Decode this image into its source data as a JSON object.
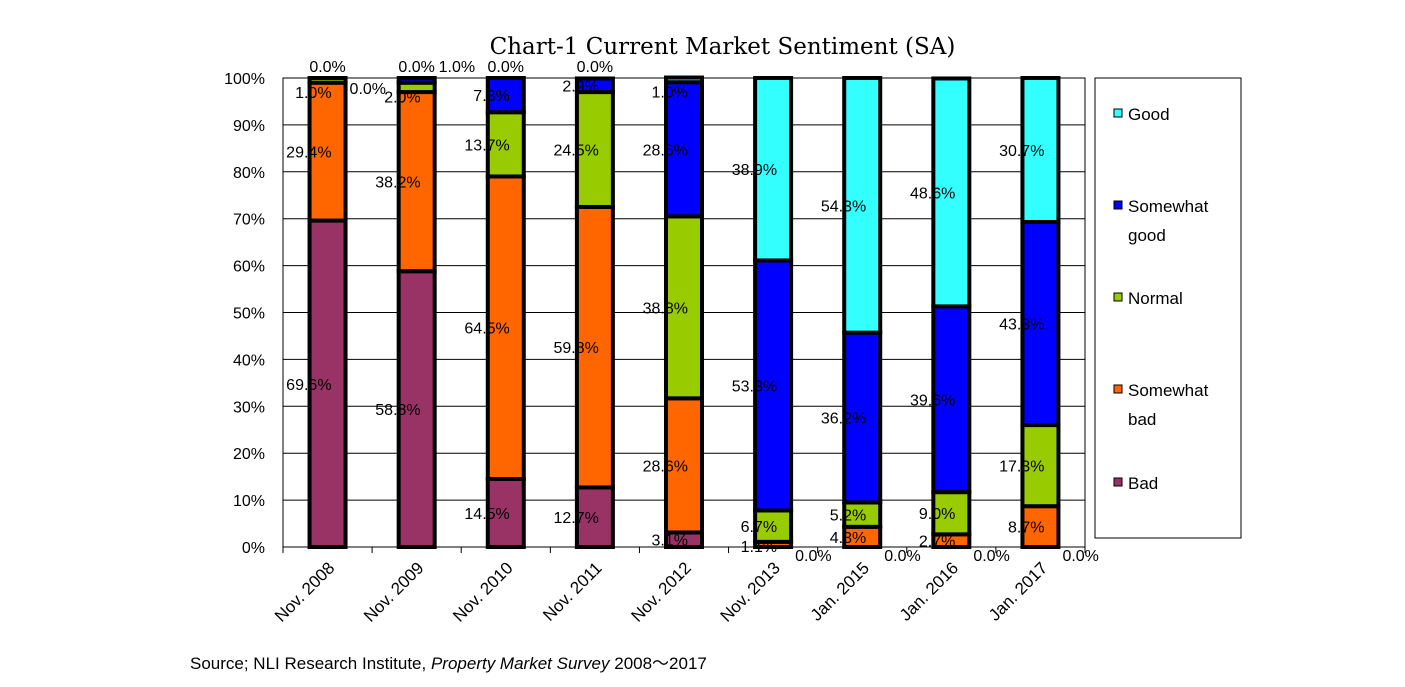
{
  "chart_data": {
    "type": "bar",
    "stacked": true,
    "title": "Chart-1 Current Market Sentiment (SA)",
    "categories": [
      "Nov. 2008",
      "Nov. 2009",
      "Nov. 2010",
      "Nov. 2011",
      "Nov. 2012",
      "Nov. 2013",
      "Jan. 2015",
      "Jan. 2016",
      "Jan. 2017"
    ],
    "series": [
      {
        "name": "Bad",
        "color": "#993366",
        "values": [
          69.6,
          58.8,
          14.5,
          12.7,
          3.1,
          0.0,
          0.0,
          0.0,
          0.0
        ]
      },
      {
        "name": "Somewhat bad",
        "color": "#ff6600",
        "values": [
          29.4,
          38.2,
          64.5,
          59.8,
          28.6,
          1.1,
          4.3,
          2.7,
          8.7
        ]
      },
      {
        "name": "Normal",
        "color": "#99cc00",
        "values": [
          1.0,
          2.0,
          13.7,
          24.5,
          38.8,
          6.7,
          5.2,
          9.0,
          17.3
        ]
      },
      {
        "name": "Somewhat good",
        "color": "#0000ff",
        "values": [
          0.0,
          1.0,
          7.3,
          2.9,
          28.6,
          53.3,
          36.2,
          39.6,
          43.3
        ]
      },
      {
        "name": "Good",
        "color": "#33ffff",
        "values": [
          0.0,
          0.0,
          0.0,
          0.0,
          1.0,
          38.9,
          54.3,
          48.6,
          30.7
        ]
      }
    ],
    "legend_lines": [
      [
        "Good"
      ],
      [
        "Somewhat",
        "good"
      ],
      [
        "Normal"
      ],
      [
        "Somewhat",
        "bad"
      ],
      [
        "Bad"
      ]
    ],
    "yticks": [
      "0%",
      "10%",
      "20%",
      "30%",
      "40%",
      "50%",
      "60%",
      "70%",
      "80%",
      "90%",
      "100%"
    ],
    "ylim": [
      0,
      100
    ],
    "grid": true,
    "legend": "right"
  },
  "source": {
    "prefix": "Source; NLI Research Institute, ",
    "italic": "Property Market Survey",
    "suffix": " 2008～2017"
  }
}
